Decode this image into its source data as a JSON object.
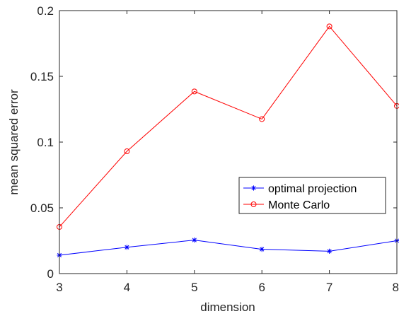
{
  "chart_data": {
    "type": "line",
    "title": "",
    "xlabel": "dimension",
    "ylabel": "mean squared error",
    "xlim": [
      3,
      8
    ],
    "ylim": [
      0,
      0.2
    ],
    "x_ticks": [
      "3",
      "4",
      "5",
      "6",
      "7",
      "8"
    ],
    "y_ticks": [
      "0",
      "0.05",
      "0.1",
      "0.15",
      "0.2"
    ],
    "x": [
      3,
      4,
      5,
      6,
      7,
      8
    ],
    "grid": false,
    "legend_position": "right, middle",
    "series": [
      {
        "name": "optimal projection",
        "values": [
          0.014,
          0.02,
          0.0255,
          0.0185,
          0.017,
          0.025
        ],
        "color": "#0000ff",
        "marker": "asterisk"
      },
      {
        "name": "Monte Carlo",
        "values": [
          0.0355,
          0.093,
          0.1385,
          0.1175,
          0.188,
          0.1275
        ],
        "color": "#ff0000",
        "marker": "circle"
      }
    ]
  }
}
